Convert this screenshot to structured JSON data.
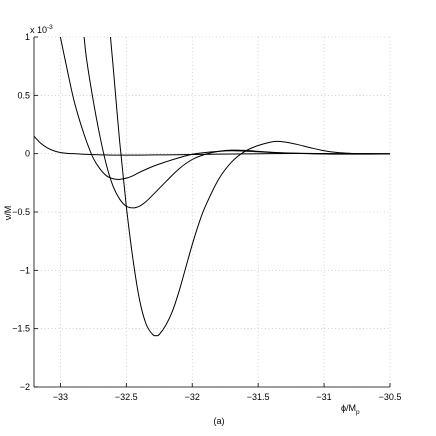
{
  "chart_data": {
    "type": "line",
    "xlabel": "ϕ/M",
    "xlabel_sub": "p",
    "ylabel": "ν/M",
    "y_multiplier": "x 10",
    "y_multiplier_exp": "-3",
    "caption": "(a)",
    "xlim": [
      -33.2,
      -30.5
    ],
    "ylim": [
      -2,
      1
    ],
    "grid": true,
    "x_ticks": [
      -33,
      -32.5,
      -32,
      -31.5,
      -31,
      -30.5
    ],
    "x_tick_labels": [
      "−33",
      "−32.5",
      "−32",
      "−31.5",
      "−31",
      "−30.5"
    ],
    "y_ticks": [
      -2,
      -1.5,
      -1,
      -0.5,
      0,
      0.5,
      1
    ],
    "y_tick_labels": [
      "−2",
      "−1.5",
      "−1",
      "−0.5",
      "0",
      "0.5",
      "1"
    ],
    "series": [
      {
        "x": [
          -33.2,
          -33.15,
          -33.1,
          -33.05,
          -33.0,
          -32.95,
          -32.9,
          -32.85,
          -32.8,
          -32.75,
          -32.7,
          -32.6,
          -32.5,
          -32.4,
          -32.2,
          -32.0,
          -31.8,
          -31.6,
          -31.4,
          -31.2,
          -31.0,
          -30.8,
          -30.5
        ],
        "y": [
          0.15,
          0.09,
          0.05,
          0.025,
          0.01,
          0.003,
          0.0,
          -0.003,
          -0.006,
          -0.008,
          -0.01,
          -0.012,
          -0.013,
          -0.012,
          -0.01,
          -0.007,
          -0.004,
          -0.002,
          0.0,
          0.001,
          0.001,
          0.0,
          0.0
        ]
      },
      {
        "x": [
          -33.0,
          -32.95,
          -32.9,
          -32.85,
          -32.8,
          -32.75,
          -32.7,
          -32.65,
          -32.6,
          -32.55,
          -32.5,
          -32.45,
          -32.4,
          -32.3,
          -32.2,
          -32.1,
          -32.0,
          -31.9,
          -31.8,
          -31.7,
          -31.6,
          -31.5,
          -31.4,
          -31.2,
          -31.0,
          -30.8,
          -30.5
        ],
        "y": [
          1.0,
          0.73,
          0.47,
          0.27,
          0.1,
          -0.04,
          -0.13,
          -0.19,
          -0.215,
          -0.22,
          -0.21,
          -0.19,
          -0.16,
          -0.11,
          -0.07,
          -0.035,
          -0.005,
          0.01,
          0.02,
          0.025,
          0.022,
          0.016,
          0.01,
          0.004,
          0.0,
          -0.002,
          -0.002
        ]
      },
      {
        "x": [
          -32.82,
          -32.8,
          -32.75,
          -32.7,
          -32.65,
          -32.6,
          -32.55,
          -32.5,
          -32.45,
          -32.4,
          -32.35,
          -32.3,
          -32.2,
          -32.1,
          -32.0,
          -31.9,
          -31.8,
          -31.7,
          -31.6,
          -31.5,
          -31.4,
          -31.3,
          -31.2,
          -31.0,
          -30.8,
          -30.5
        ],
        "y": [
          1.0,
          0.8,
          0.45,
          0.15,
          -0.1,
          -0.28,
          -0.39,
          -0.45,
          -0.465,
          -0.45,
          -0.41,
          -0.355,
          -0.24,
          -0.13,
          -0.05,
          -0.005,
          0.02,
          0.03,
          0.028,
          0.02,
          0.012,
          0.006,
          0.002,
          -0.003,
          -0.004,
          -0.003
        ]
      },
      {
        "x": [
          -32.62,
          -32.6,
          -32.55,
          -32.5,
          -32.45,
          -32.4,
          -32.35,
          -32.3,
          -32.27,
          -32.25,
          -32.2,
          -32.15,
          -32.1,
          -32.05,
          -32.0,
          -31.95,
          -31.9,
          -31.8,
          -31.7,
          -31.6,
          -31.5,
          -31.4,
          -31.35,
          -31.3,
          -31.25,
          -31.2,
          -31.1,
          -31.0,
          -30.9,
          -30.8,
          -30.7,
          -30.5
        ],
        "y": [
          1.0,
          0.75,
          0.1,
          -0.45,
          -0.9,
          -1.25,
          -1.46,
          -1.55,
          -1.56,
          -1.55,
          -1.47,
          -1.35,
          -1.18,
          -0.98,
          -0.78,
          -0.6,
          -0.45,
          -0.22,
          -0.07,
          0.02,
          0.07,
          0.1,
          0.105,
          0.1,
          0.09,
          0.078,
          0.05,
          0.025,
          0.01,
          0.003,
          0.0,
          -0.003
        ]
      }
    ]
  }
}
